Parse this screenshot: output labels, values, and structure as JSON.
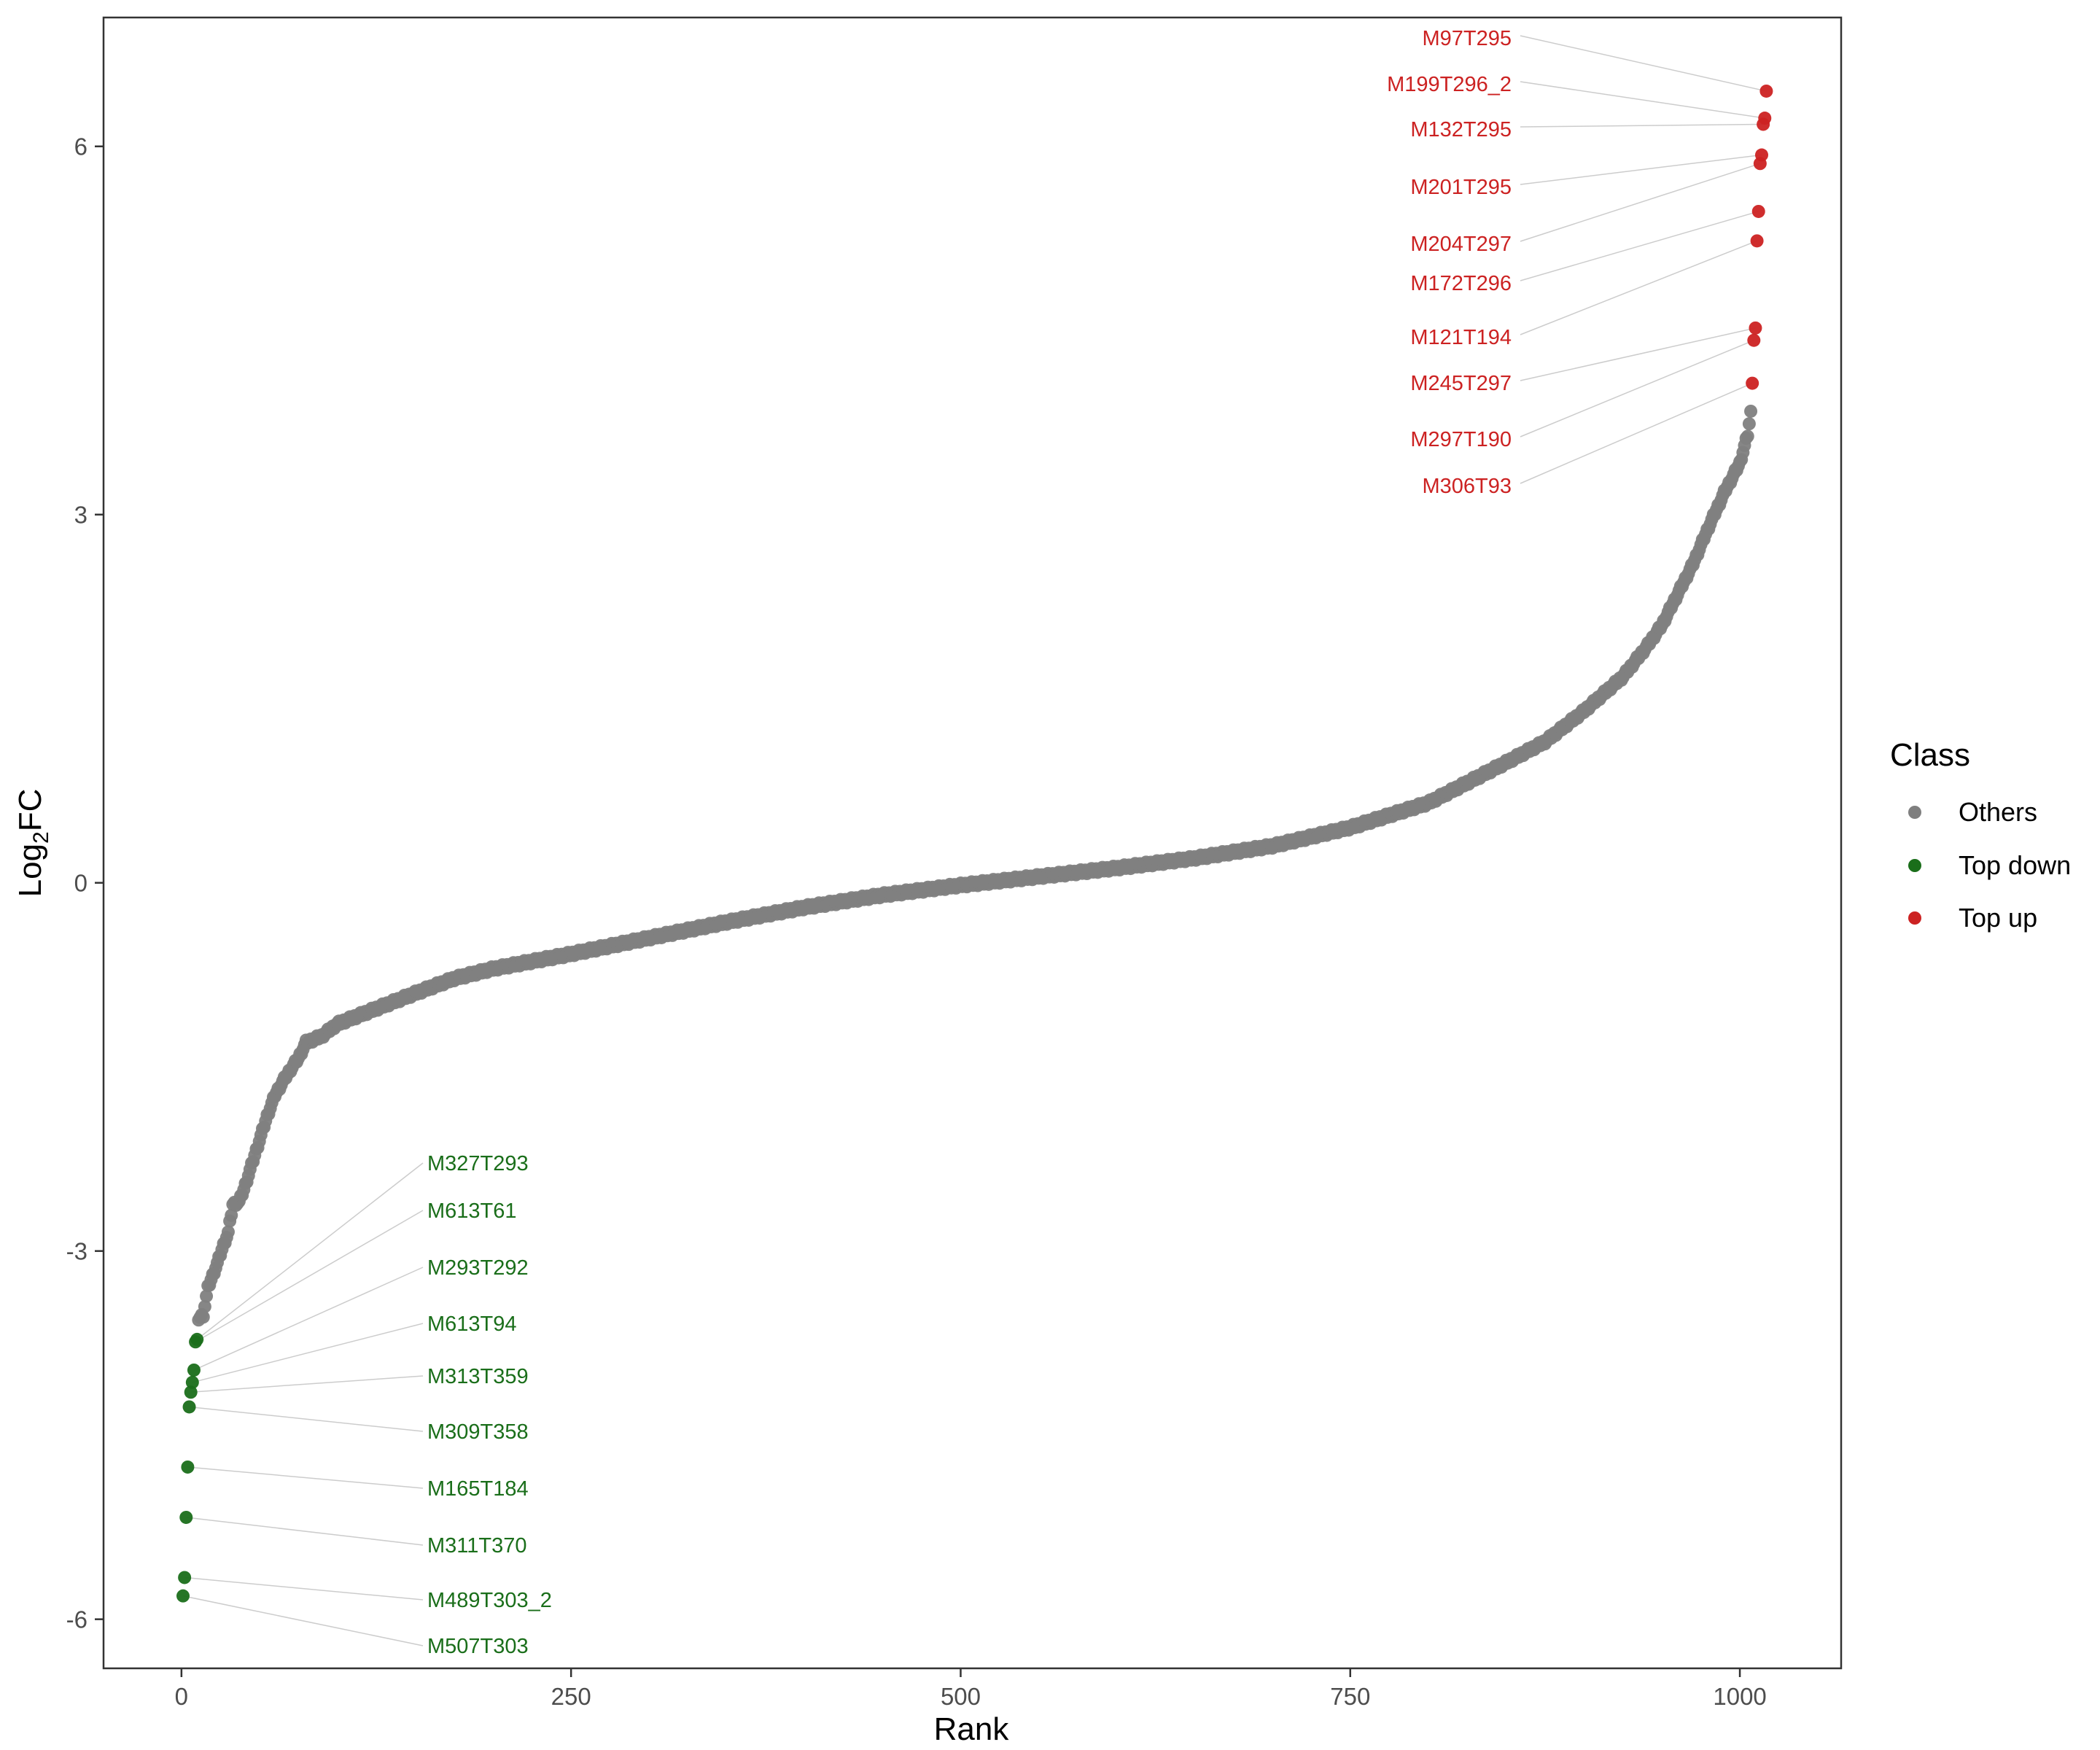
{
  "chart_data": {
    "type": "scatter",
    "xlabel": "Rank",
    "ylabel_main": "Log",
    "ylabel_sub": "2",
    "ylabel_rest": "FC",
    "xlim": [
      -50,
      1065
    ],
    "ylim": [
      -6.4,
      7.05
    ],
    "x_ticks": [
      0,
      250,
      500,
      750,
      1000
    ],
    "y_ticks": [
      -6,
      -3,
      0,
      3,
      6
    ],
    "grid": false,
    "legend_position": "right",
    "legend": {
      "title": "Class",
      "items": [
        {
          "label": "Others",
          "color": "#7f7f7f"
        },
        {
          "label": "Top down",
          "color": "#1a6e1a"
        },
        {
          "label": "Top up",
          "color": "#cc2222"
        }
      ]
    },
    "curve_keypoints": [
      [
        11,
        -3.55
      ],
      [
        14,
        -3.52
      ],
      [
        17,
        -3.3
      ],
      [
        20,
        -3.2
      ],
      [
        23,
        -3.1
      ],
      [
        27,
        -2.95
      ],
      [
        30,
        -2.85
      ],
      [
        33,
        -2.62
      ],
      [
        37,
        -2.6
      ],
      [
        40,
        -2.5
      ],
      [
        45,
        -2.3
      ],
      [
        50,
        -2.1
      ],
      [
        55,
        -1.9
      ],
      [
        60,
        -1.73
      ],
      [
        65,
        -1.62
      ],
      [
        70,
        -1.52
      ],
      [
        75,
        -1.43
      ],
      [
        80,
        -1.3
      ],
      [
        90,
        -1.25
      ],
      [
        100,
        -1.15
      ],
      [
        110,
        -1.1
      ],
      [
        120,
        -1.05
      ],
      [
        130,
        -1.0
      ],
      [
        150,
        -0.9
      ],
      [
        175,
        -0.78
      ],
      [
        200,
        -0.7
      ],
      [
        225,
        -0.64
      ],
      [
        250,
        -0.58
      ],
      [
        300,
        -0.45
      ],
      [
        350,
        -0.32
      ],
      [
        400,
        -0.2
      ],
      [
        450,
        -0.1
      ],
      [
        500,
        -0.02
      ],
      [
        550,
        0.05
      ],
      [
        600,
        0.12
      ],
      [
        650,
        0.2
      ],
      [
        700,
        0.3
      ],
      [
        750,
        0.45
      ],
      [
        800,
        0.65
      ],
      [
        850,
        0.98
      ],
      [
        875,
        1.15
      ],
      [
        900,
        1.4
      ],
      [
        925,
        1.68
      ],
      [
        940,
        1.92
      ],
      [
        950,
        2.1
      ],
      [
        960,
        2.35
      ],
      [
        970,
        2.6
      ],
      [
        980,
        2.9
      ],
      [
        990,
        3.18
      ],
      [
        1000,
        3.42
      ],
      [
        1005,
        3.65
      ],
      [
        1007,
        3.83
      ]
    ],
    "top_up": {
      "color": "#cc2222",
      "points": [
        {
          "name": "M97T295",
          "x": 1017,
          "y": 6.45
        },
        {
          "name": "M199T296_2",
          "x": 1016,
          "y": 6.23
        },
        {
          "name": "M132T295",
          "x": 1015,
          "y": 6.18
        },
        {
          "name": "M201T295",
          "x": 1014,
          "y": 5.93
        },
        {
          "name": "M204T297",
          "x": 1013,
          "y": 5.86
        },
        {
          "name": "M172T296",
          "x": 1012,
          "y": 5.47
        },
        {
          "name": "M121T194",
          "x": 1011,
          "y": 5.23
        },
        {
          "name": "M245T297",
          "x": 1010,
          "y": 4.52
        },
        {
          "name": "M297T190",
          "x": 1009,
          "y": 4.42
        },
        {
          "name": "M306T93",
          "x": 1008,
          "y": 4.07
        }
      ]
    },
    "top_down": {
      "color": "#1a6e1a",
      "points": [
        {
          "name": "M327T293",
          "x": 10,
          "y": -3.72
        },
        {
          "name": "M613T61",
          "x": 9,
          "y": -3.74
        },
        {
          "name": "M293T292",
          "x": 8,
          "y": -3.97
        },
        {
          "name": "M613T94",
          "x": 7,
          "y": -4.07
        },
        {
          "name": "M313T359",
          "x": 6,
          "y": -4.15
        },
        {
          "name": "M309T358",
          "x": 5,
          "y": -4.27
        },
        {
          "name": "M165T184",
          "x": 4,
          "y": -4.76
        },
        {
          "name": "M311T370",
          "x": 3,
          "y": -5.17
        },
        {
          "name": "M489T303_2",
          "x": 2,
          "y": -5.66
        },
        {
          "name": "M507T303",
          "x": 1,
          "y": -5.81
        }
      ]
    }
  }
}
